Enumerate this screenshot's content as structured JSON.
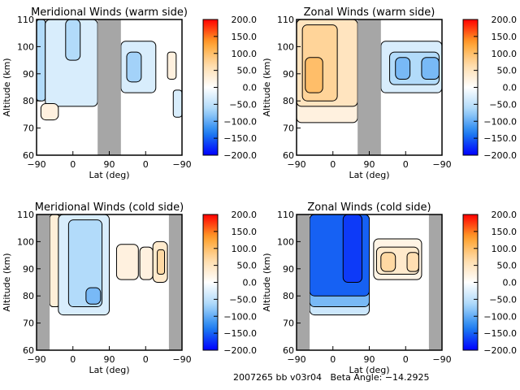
{
  "chart_data": [
    {
      "type": "heatmap",
      "title": "Meridional Winds (warm side)",
      "xlabel": "Lat (deg)",
      "ylabel": "Altitude (km)",
      "ylim": [
        60,
        110
      ],
      "yticks": [
        "60",
        "70",
        "80",
        "90",
        "100",
        "110"
      ],
      "xticks": [
        "−90",
        "0",
        "90",
        "0",
        "−90"
      ],
      "colorbar": {
        "min": -200,
        "max": 200,
        "ticks": [
          "200.0",
          "150.0",
          "100.0",
          "50.0",
          "0.0",
          "−50.0",
          "−100.0",
          "−150.0",
          "−200.0"
        ]
      },
      "gaps": [
        [
          0.42,
          0.58
        ]
      ],
      "blobs": [
        {
          "x": [
            0.0,
            0.06
          ],
          "y": [
            80,
            110
          ],
          "v": -60
        },
        {
          "x": [
            0.06,
            0.42
          ],
          "y": [
            78,
            110
          ],
          "v": -30
        },
        {
          "x": [
            0.2,
            0.3
          ],
          "y": [
            95,
            110
          ],
          "v": -60
        },
        {
          "x": [
            0.03,
            0.15
          ],
          "y": [
            73,
            79
          ],
          "v": 25
        },
        {
          "x": [
            0.58,
            0.82
          ],
          "y": [
            83,
            102
          ],
          "v": -30
        },
        {
          "x": [
            0.62,
            0.72
          ],
          "y": [
            87,
            98
          ],
          "v": -70
        },
        {
          "x": [
            0.9,
            0.96
          ],
          "y": [
            88,
            98
          ],
          "v": 25
        },
        {
          "x": [
            0.94,
            1.0
          ],
          "y": [
            74,
            84
          ],
          "v": -30
        }
      ]
    },
    {
      "type": "heatmap",
      "title": "Zonal Winds (warm side)",
      "xlabel": "Lat (deg)",
      "ylabel": "Altitude (km)",
      "ylim": [
        60,
        110
      ],
      "yticks": [
        "60",
        "70",
        "80",
        "90",
        "100",
        "110"
      ],
      "xticks": [
        "−90",
        "0",
        "90",
        "0",
        "−90"
      ],
      "colorbar": {
        "min": -200,
        "max": 200,
        "ticks": [
          "200.0",
          "150.0",
          "100.0",
          "50.0",
          "0.0",
          "−50.0",
          "−100.0",
          "−150.0",
          "−200.0"
        ]
      },
      "gaps": [
        [
          0.42,
          0.58
        ]
      ],
      "blobs": [
        {
          "x": [
            0.0,
            0.42
          ],
          "y": [
            72,
            110
          ],
          "v": 25
        },
        {
          "x": [
            0.0,
            0.42
          ],
          "y": [
            78,
            110
          ],
          "v": 50
        },
        {
          "x": [
            0.04,
            0.28
          ],
          "y": [
            80,
            108
          ],
          "v": 75
        },
        {
          "x": [
            0.06,
            0.18
          ],
          "y": [
            83,
            96
          ],
          "v": 100
        },
        {
          "x": [
            0.58,
            1.0
          ],
          "y": [
            83,
            102
          ],
          "v": -30
        },
        {
          "x": [
            0.64,
            0.98
          ],
          "y": [
            86,
            98
          ],
          "v": -60
        },
        {
          "x": [
            0.68,
            0.78
          ],
          "y": [
            88,
            96
          ],
          "v": -90
        },
        {
          "x": [
            0.86,
            0.98
          ],
          "y": [
            88,
            96
          ],
          "v": -90
        }
      ]
    },
    {
      "type": "heatmap",
      "title": "Meridional Winds (cold side)",
      "xlabel": "Lat (deg)",
      "ylabel": "Altitude (km)",
      "ylim": [
        60,
        110
      ],
      "yticks": [
        "60",
        "70",
        "80",
        "90",
        "100",
        "110"
      ],
      "xticks": [
        "−90",
        "0",
        "90",
        "0",
        "−90"
      ],
      "colorbar": {
        "min": -200,
        "max": 200,
        "ticks": [
          "200.0",
          "150.0",
          "100.0",
          "50.0",
          "0.0",
          "−50.0",
          "−100.0",
          "−150.0",
          "−200.0"
        ]
      },
      "gaps": [
        [
          0.0,
          0.09
        ],
        [
          0.91,
          1.0
        ]
      ],
      "blobs": [
        {
          "x": [
            0.09,
            0.16
          ],
          "y": [
            76,
            110
          ],
          "v": 30
        },
        {
          "x": [
            0.15,
            0.5
          ],
          "y": [
            73,
            110
          ],
          "v": -30
        },
        {
          "x": [
            0.22,
            0.45
          ],
          "y": [
            76,
            108
          ],
          "v": -60
        },
        {
          "x": [
            0.34,
            0.44
          ],
          "y": [
            77,
            83
          ],
          "v": -90
        },
        {
          "x": [
            0.55,
            0.7
          ],
          "y": [
            86,
            99
          ],
          "v": 25
        },
        {
          "x": [
            0.71,
            0.8
          ],
          "y": [
            86,
            98
          ],
          "v": 25
        },
        {
          "x": [
            0.8,
            0.9
          ],
          "y": [
            85,
            100
          ],
          "v": 40
        },
        {
          "x": [
            0.83,
            0.88
          ],
          "y": [
            88,
            97
          ],
          "v": 70
        }
      ]
    },
    {
      "type": "heatmap",
      "title": "Zonal Winds (cold side)",
      "xlabel": "Lat (deg)",
      "ylabel": "Altitude (km)",
      "ylim": [
        60,
        110
      ],
      "yticks": [
        "60",
        "70",
        "80",
        "90",
        "100",
        "110"
      ],
      "xticks": [
        "−90",
        "0",
        "90",
        "0",
        "−90"
      ],
      "colorbar": {
        "min": -200,
        "max": 200,
        "ticks": [
          "200.0",
          "150.0",
          "100.0",
          "50.0",
          "0.0",
          "−50.0",
          "−100.0",
          "−150.0",
          "−200.0"
        ]
      },
      "gaps": [
        [
          0.0,
          0.09
        ],
        [
          0.91,
          1.0
        ]
      ],
      "blobs": [
        {
          "x": [
            0.09,
            0.5
          ],
          "y": [
            73,
            110
          ],
          "v": -40
        },
        {
          "x": [
            0.09,
            0.5
          ],
          "y": [
            76,
            110
          ],
          "v": -90
        },
        {
          "x": [
            0.09,
            0.5
          ],
          "y": [
            80,
            110
          ],
          "v": -150
        },
        {
          "x": [
            0.32,
            0.45
          ],
          "y": [
            85,
            110
          ],
          "v": -170
        },
        {
          "x": [
            0.53,
            0.86
          ],
          "y": [
            86,
            101
          ],
          "v": 20
        },
        {
          "x": [
            0.55,
            0.84
          ],
          "y": [
            88,
            98
          ],
          "v": 40
        },
        {
          "x": [
            0.58,
            0.68
          ],
          "y": [
            89,
            96
          ],
          "v": 70
        },
        {
          "x": [
            0.76,
            0.84
          ],
          "y": [
            89,
            96
          ],
          "v": 60
        }
      ]
    }
  ],
  "footer": "2007265 bb v03r04   Beta Angle: −14.2925"
}
